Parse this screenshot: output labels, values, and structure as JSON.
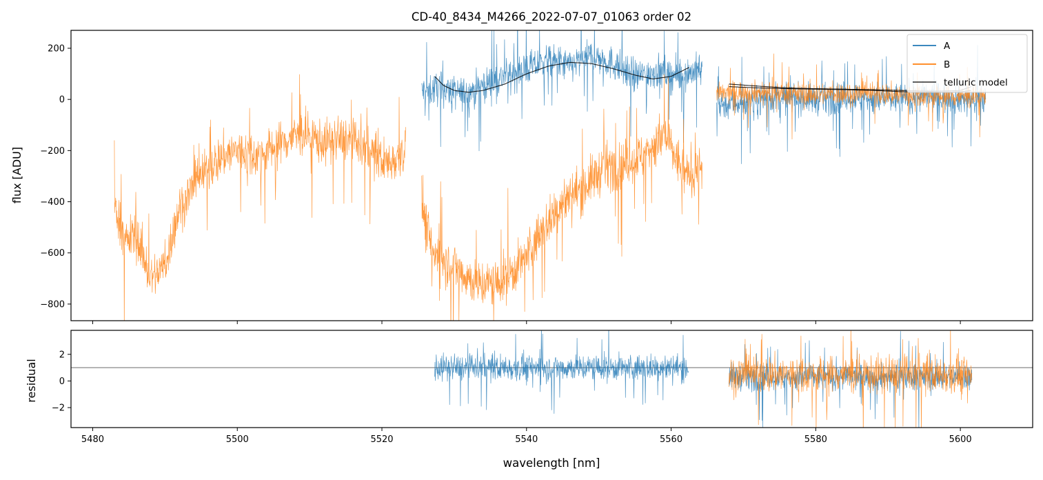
{
  "chart_data": {
    "title": "CD-40_8434_M4266_2022-07-07_01063  order 02",
    "xlabel": "wavelength [nm]",
    "xlim": [
      5477,
      5610
    ],
    "xticks": [
      5480,
      5500,
      5520,
      5540,
      5560,
      5580,
      5600
    ],
    "legend_position": "top-right",
    "series_colors": {
      "A": "#1f77b4",
      "B": "#ff7f0e",
      "telluric model": "#000000"
    },
    "panels": [
      {
        "type": "line",
        "ylabel": "flux [ADU]",
        "ylim": [
          -865,
          270
        ],
        "yticks": [
          -800,
          -600,
          -400,
          -200,
          0,
          200
        ],
        "legend": [
          "A",
          "B",
          "telluric model"
        ],
        "series": [
          {
            "name": "A",
            "segments": [
              {
                "x": [
                  5525.5,
                  5528,
                  5531,
                  5534,
                  5537,
                  5540,
                  5543,
                  5546,
                  5549,
                  5552,
                  5555,
                  5558,
                  5561,
                  5564.3
                ],
                "y": [
                  30,
                  45,
                  20,
                  55,
                  90,
                  120,
                  150,
                  130,
                  170,
                  140,
                  90,
                  110,
                  90,
                  120
                ],
                "spread": 60
              },
              {
                "x": [
                  5566.3,
                  5570,
                  5575,
                  5580,
                  5585,
                  5590,
                  5595,
                  5600,
                  5603.5
                ],
                "y": [
                  -20,
                  -10,
                  10,
                  0,
                  10,
                  0,
                  10,
                  5,
                  0
                ],
                "spread": 55
              }
            ]
          },
          {
            "name": "B",
            "segments": [
              {
                "x": [
                  5483,
                  5484.5,
                  5486,
                  5488,
                  5490,
                  5492,
                  5495,
                  5498,
                  5500,
                  5503,
                  5506,
                  5509,
                  5512,
                  5515,
                  5518,
                  5521,
                  5523.3
                ],
                "y": [
                  -400,
                  -560,
                  -520,
                  -700,
                  -650,
                  -420,
                  -300,
                  -220,
                  -200,
                  -220,
                  -170,
                  -130,
                  -170,
                  -150,
                  -200,
                  -250,
                  -190
                ],
                "spread": 80
              },
              {
                "x": [
                  5525.5,
                  5527,
                  5530,
                  5533,
                  5536,
                  5539,
                  5542,
                  5545,
                  5548,
                  5551,
                  5553,
                  5556,
                  5559,
                  5562,
                  5564.3
                ],
                "y": [
                  -400,
                  -600,
                  -650,
                  -720,
                  -720,
                  -650,
                  -520,
                  -400,
                  -340,
                  -260,
                  -260,
                  -220,
                  -140,
                  -300,
                  -260
                ],
                "spread": 85
              },
              {
                "x": [
                  5566.3,
                  5570,
                  5575,
                  5580,
                  5585,
                  5590,
                  5595,
                  5600,
                  5603.5
                ],
                "y": [
                  20,
                  30,
                  25,
                  20,
                  25,
                  20,
                  15,
                  10,
                  10
                ],
                "spread": 40
              }
            ]
          },
          {
            "name": "telluric model",
            "segments": [
              {
                "x": [
                  5527.3,
                  5528.5,
                  5530,
                  5532,
                  5534,
                  5537,
                  5540,
                  5543,
                  5546,
                  5549,
                  5552,
                  5555,
                  5557.5,
                  5560,
                  5562.5
                ],
                "y": [
                  90,
                  55,
                  35,
                  28,
                  35,
                  60,
                  100,
                  130,
                  145,
                  140,
                  120,
                  95,
                  80,
                  90,
                  125
                ],
                "spread": 0
              },
              {
                "x": [
                  5568,
                  5572,
                  5576,
                  5580,
                  5584,
                  5588,
                  5592,
                  5596,
                  5600,
                  5601.5
                ],
                "y": [
                  50,
                  45,
                  42,
                  40,
                  38,
                  35,
                  30,
                  28,
                  30,
                  35
                ],
                "spread": 0
              },
              {
                "x": [
                  5568,
                  5572,
                  5576,
                  5580,
                  5584,
                  5588,
                  5592,
                  5596,
                  5600,
                  5601.5
                ],
                "y": [
                  60,
                  52,
                  45,
                  42,
                  40,
                  38,
                  35,
                  32,
                  35,
                  50
                ],
                "spread": 0
              }
            ]
          }
        ]
      },
      {
        "type": "line",
        "ylabel": "residual",
        "ylim": [
          -3.5,
          3.8
        ],
        "yticks": [
          -2,
          0,
          2
        ],
        "hline": 1.0,
        "series": [
          {
            "name": "A",
            "segments": [
              {
                "x": [
                  5527.3,
                  5562.4
                ],
                "y": [
                  1.0,
                  1.0
                ],
                "spread": 0.9
              },
              {
                "x": [
                  5568.0,
                  5601.6
                ],
                "y": [
                  0.3,
                  0.3
                ],
                "spread": 0.9
              }
            ]
          },
          {
            "name": "B",
            "segments": [
              {
                "x": [
                  5568.0,
                  5601.6
                ],
                "y": [
                  0.5,
                  0.5
                ],
                "spread": 1.3
              }
            ]
          }
        ]
      }
    ]
  }
}
